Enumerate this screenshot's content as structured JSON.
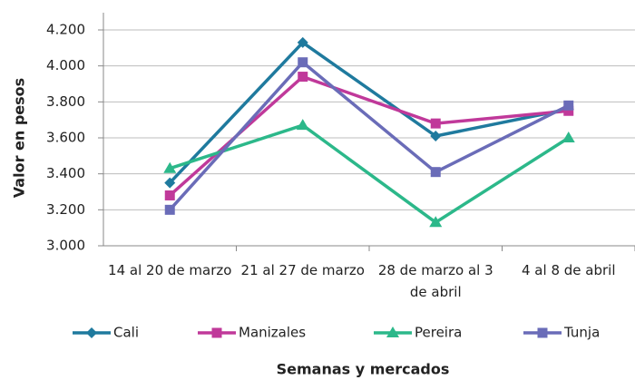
{
  "chart_data": {
    "type": "line",
    "x_label": "Semanas y mercados",
    "y_label": "Valor en pesos",
    "categories": [
      "14 al 20 de marzo",
      "21 al 27 de marzo",
      "28 de marzo al 3 de abril",
      "4 al 8 de abril"
    ],
    "series": [
      {
        "name": "Cali",
        "color": "#1f7a9e",
        "marker": "diamond",
        "values": [
          3350,
          4130,
          3610,
          3760
        ]
      },
      {
        "name": "Manizales",
        "color": "#c0399a",
        "marker": "square",
        "values": [
          3280,
          3940,
          3680,
          3750
        ]
      },
      {
        "name": "Pereira",
        "color": "#2cb88a",
        "marker": "triangle",
        "values": [
          3430,
          3670,
          3130,
          3600
        ]
      },
      {
        "name": "Tunja",
        "color": "#6a6cb8",
        "marker": "square",
        "values": [
          3200,
          4020,
          3410,
          3780
        ]
      }
    ],
    "ylim": [
      3000,
      4200
    ],
    "yticks": [
      {
        "value": 3000,
        "label": "3.000"
      },
      {
        "value": 3200,
        "label": "3.200"
      },
      {
        "value": 3400,
        "label": "3.400"
      },
      {
        "value": 3600,
        "label": "3.600"
      },
      {
        "value": 3800,
        "label": "3.800"
      },
      {
        "value": 4000,
        "label": "4.000"
      },
      {
        "value": 4200,
        "label": "4.200"
      }
    ],
    "grid": true,
    "legend": "bottom"
  }
}
